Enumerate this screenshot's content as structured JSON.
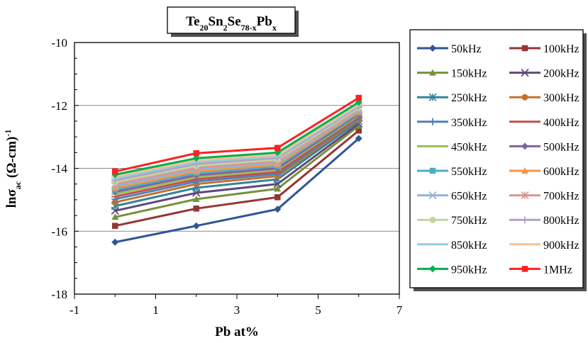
{
  "chart_data": {
    "type": "line",
    "title": {
      "parts": [
        {
          "t": "Te"
        },
        {
          "t": "20",
          "sub": true
        },
        {
          "t": "Sn"
        },
        {
          "t": "2",
          "sub": true
        },
        {
          "t": "Se"
        },
        {
          "t": "78-x",
          "sub": true
        },
        {
          "t": "Pb"
        },
        {
          "t": "x",
          "sub": true
        }
      ]
    },
    "xlabel": "Pb at%",
    "ylabel": {
      "parts": [
        {
          "t": "lnσ"
        },
        {
          "t": "ac",
          "sub": true
        },
        {
          "t": " (Ω-cm)"
        },
        {
          "t": "-1",
          "sup": true
        }
      ]
    },
    "xlim": [
      -1,
      7
    ],
    "ylim": [
      -18,
      -10
    ],
    "xticks": [
      -1,
      1,
      3,
      5,
      7
    ],
    "yticks": [
      -18,
      -16,
      -14,
      -12,
      -10
    ],
    "grid": "horizontal",
    "legend_position": "right",
    "x": [
      0,
      2,
      4,
      6
    ],
    "series": [
      {
        "name": "50kHz",
        "color": "#2F5597",
        "marker": "diamond",
        "values": [
          -16.35,
          -15.83,
          -15.3,
          -13.05
        ]
      },
      {
        "name": "100kHz",
        "color": "#943634",
        "marker": "square",
        "values": [
          -15.83,
          -15.28,
          -14.92,
          -12.8
        ]
      },
      {
        "name": "150kHz",
        "color": "#76923C",
        "marker": "triangle",
        "values": [
          -15.55,
          -14.98,
          -14.65,
          -12.65
        ]
      },
      {
        "name": "200kHz",
        "color": "#5F497A",
        "marker": "x",
        "values": [
          -15.35,
          -14.78,
          -14.5,
          -12.58
        ]
      },
      {
        "name": "250kHz",
        "color": "#31849B",
        "marker": "asterisk",
        "values": [
          -15.2,
          -14.62,
          -14.35,
          -12.5
        ]
      },
      {
        "name": "300kHz",
        "color": "#C0712F",
        "marker": "circle",
        "values": [
          -15.08,
          -14.5,
          -14.25,
          -12.45
        ]
      },
      {
        "name": "350kHz",
        "color": "#4F81BD",
        "marker": "plus",
        "values": [
          -14.98,
          -14.42,
          -14.18,
          -12.4
        ]
      },
      {
        "name": "400kHz",
        "color": "#C0504D",
        "marker": "dash",
        "values": [
          -14.9,
          -14.35,
          -14.12,
          -12.36
        ]
      },
      {
        "name": "450kHz",
        "color": "#9BBB59",
        "marker": "dash",
        "values": [
          -14.82,
          -14.28,
          -14.05,
          -12.32
        ]
      },
      {
        "name": "500kHz",
        "color": "#8064A2",
        "marker": "diamond",
        "values": [
          -14.75,
          -14.22,
          -14.0,
          -12.28
        ]
      },
      {
        "name": "550kHz",
        "color": "#4BACC6",
        "marker": "square",
        "values": [
          -14.68,
          -14.15,
          -13.93,
          -12.24
        ]
      },
      {
        "name": "600kHz",
        "color": "#F79646",
        "marker": "triangle",
        "values": [
          -14.62,
          -14.1,
          -13.88,
          -12.2
        ]
      },
      {
        "name": "650kHz",
        "color": "#95B3D7",
        "marker": "x",
        "values": [
          -14.56,
          -14.04,
          -13.82,
          -12.16
        ]
      },
      {
        "name": "700kHz",
        "color": "#D99694",
        "marker": "asterisk",
        "values": [
          -14.5,
          -13.98,
          -13.77,
          -12.12
        ]
      },
      {
        "name": "750kHz",
        "color": "#C3D69B",
        "marker": "circle",
        "values": [
          -14.44,
          -13.92,
          -13.72,
          -12.08
        ]
      },
      {
        "name": "800kHz",
        "color": "#B2A1C7",
        "marker": "plus",
        "values": [
          -14.38,
          -13.86,
          -13.67,
          -12.04
        ]
      },
      {
        "name": "850kHz",
        "color": "#93CDDD",
        "marker": "dash",
        "values": [
          -14.32,
          -13.8,
          -13.62,
          -12.0
        ]
      },
      {
        "name": "900kHz",
        "color": "#FAC090",
        "marker": "dash",
        "values": [
          -14.26,
          -13.74,
          -13.57,
          -11.96
        ]
      },
      {
        "name": "950kHz",
        "color": "#00B050",
        "marker": "diamond",
        "values": [
          -14.2,
          -13.68,
          -13.5,
          -11.9
        ]
      },
      {
        "name": "1MHz",
        "color": "#FF2020",
        "marker": "square",
        "values": [
          -14.1,
          -13.52,
          -13.35,
          -11.76
        ]
      }
    ]
  }
}
